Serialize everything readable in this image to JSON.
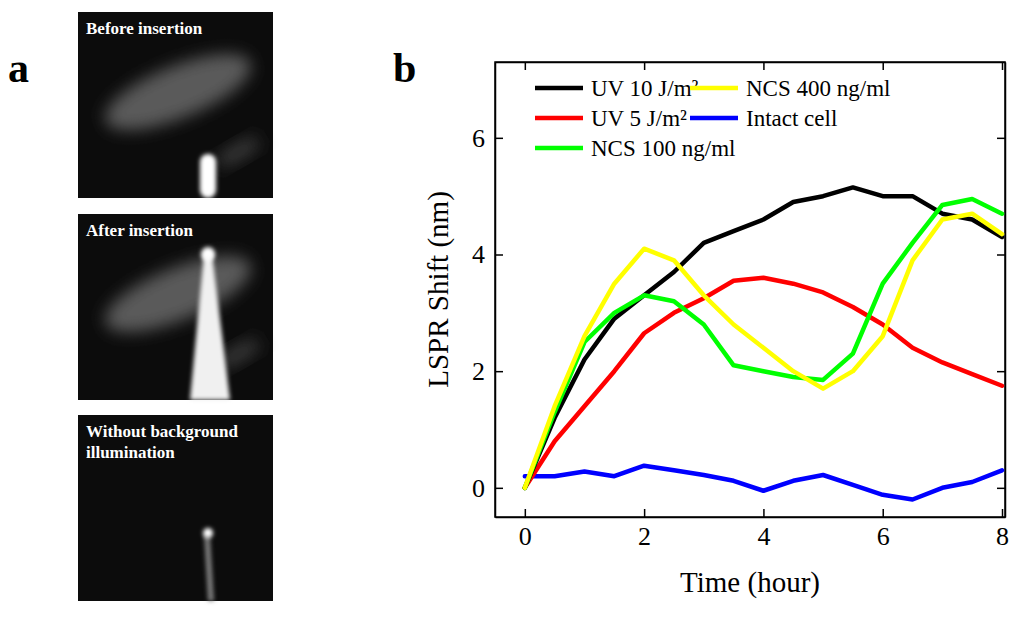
{
  "figure": {
    "panel_a": {
      "letter": "a",
      "frames": [
        "Before insertion",
        "After insertion",
        "Without background illumination"
      ]
    }
  },
  "chart_data": {
    "type": "line",
    "panel": "b",
    "x_label": "Time (hour)",
    "y_label": "LSPR Shift (nm)",
    "x": [
      0,
      0.5,
      1,
      1.5,
      2,
      2.5,
      3,
      3.5,
      4,
      4.5,
      5,
      5.5,
      6,
      6.5,
      7,
      7.5,
      8
    ],
    "series": [
      {
        "name": "UV 10 J/m²",
        "color": "#000000",
        "values": [
          0,
          1.2,
          2.2,
          2.9,
          3.3,
          3.7,
          4.2,
          4.4,
          4.6,
          4.9,
          5.0,
          5.15,
          5.0,
          5.0,
          4.7,
          4.6,
          4.3
        ]
      },
      {
        "name": "UV 5 J/m²",
        "color": "#ff0000",
        "values": [
          0,
          0.8,
          1.4,
          2.0,
          2.65,
          3.0,
          3.25,
          3.55,
          3.6,
          3.5,
          3.35,
          3.1,
          2.8,
          2.4,
          2.15,
          1.95,
          1.75
        ]
      },
      {
        "name": "NCS 100 ng/ml",
        "color": "#00ff00",
        "values": [
          0,
          1.3,
          2.5,
          3.0,
          3.3,
          3.2,
          2.8,
          2.1,
          2.0,
          1.9,
          1.85,
          2.3,
          3.5,
          4.2,
          4.85,
          4.95,
          4.7
        ]
      },
      {
        "name": "NCS 400 ng/ml",
        "color": "#ffff00",
        "values": [
          0,
          1.4,
          2.6,
          3.5,
          4.1,
          3.9,
          3.3,
          2.8,
          2.4,
          2.0,
          1.7,
          2.0,
          2.6,
          3.9,
          4.6,
          4.7,
          4.35
        ]
      },
      {
        "name": "Intact cell",
        "color": "#0000ff",
        "values": [
          0.2,
          0.2,
          0.28,
          0.2,
          0.38,
          0.3,
          0.22,
          0.12,
          -0.05,
          0.12,
          0.22,
          0.05,
          -0.12,
          -0.2,
          0.0,
          0.1,
          0.3
        ]
      }
    ],
    "xlim": [
      -0.5,
      8.05
    ],
    "ylim": [
      -0.5,
      7.3
    ],
    "xticks": [
      0,
      2,
      4,
      6,
      8
    ],
    "yticks": [
      0,
      2,
      4,
      6
    ],
    "legend": "top",
    "grid": false
  }
}
